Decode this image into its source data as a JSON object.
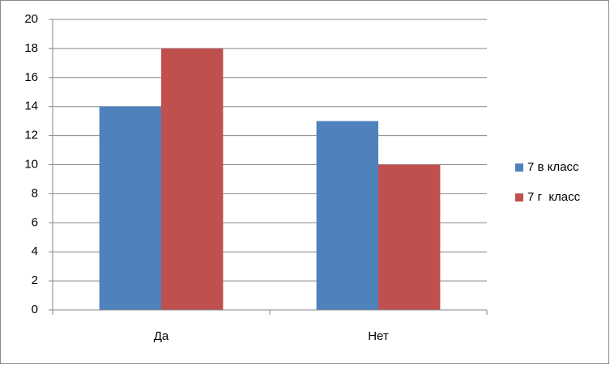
{
  "chart_data": {
    "type": "bar",
    "categories": [
      "Да",
      "Нет"
    ],
    "series": [
      {
        "name": "7 в класс",
        "color": "#4f81bd",
        "values": [
          14,
          13
        ]
      },
      {
        "name": "7 г  класс",
        "color": "#c0504d",
        "values": [
          18,
          10
        ]
      }
    ],
    "ylim": [
      0,
      20
    ],
    "yticks": [
      0,
      2,
      4,
      6,
      8,
      10,
      12,
      14,
      16,
      18,
      20
    ],
    "grid": true,
    "legend": "right"
  }
}
